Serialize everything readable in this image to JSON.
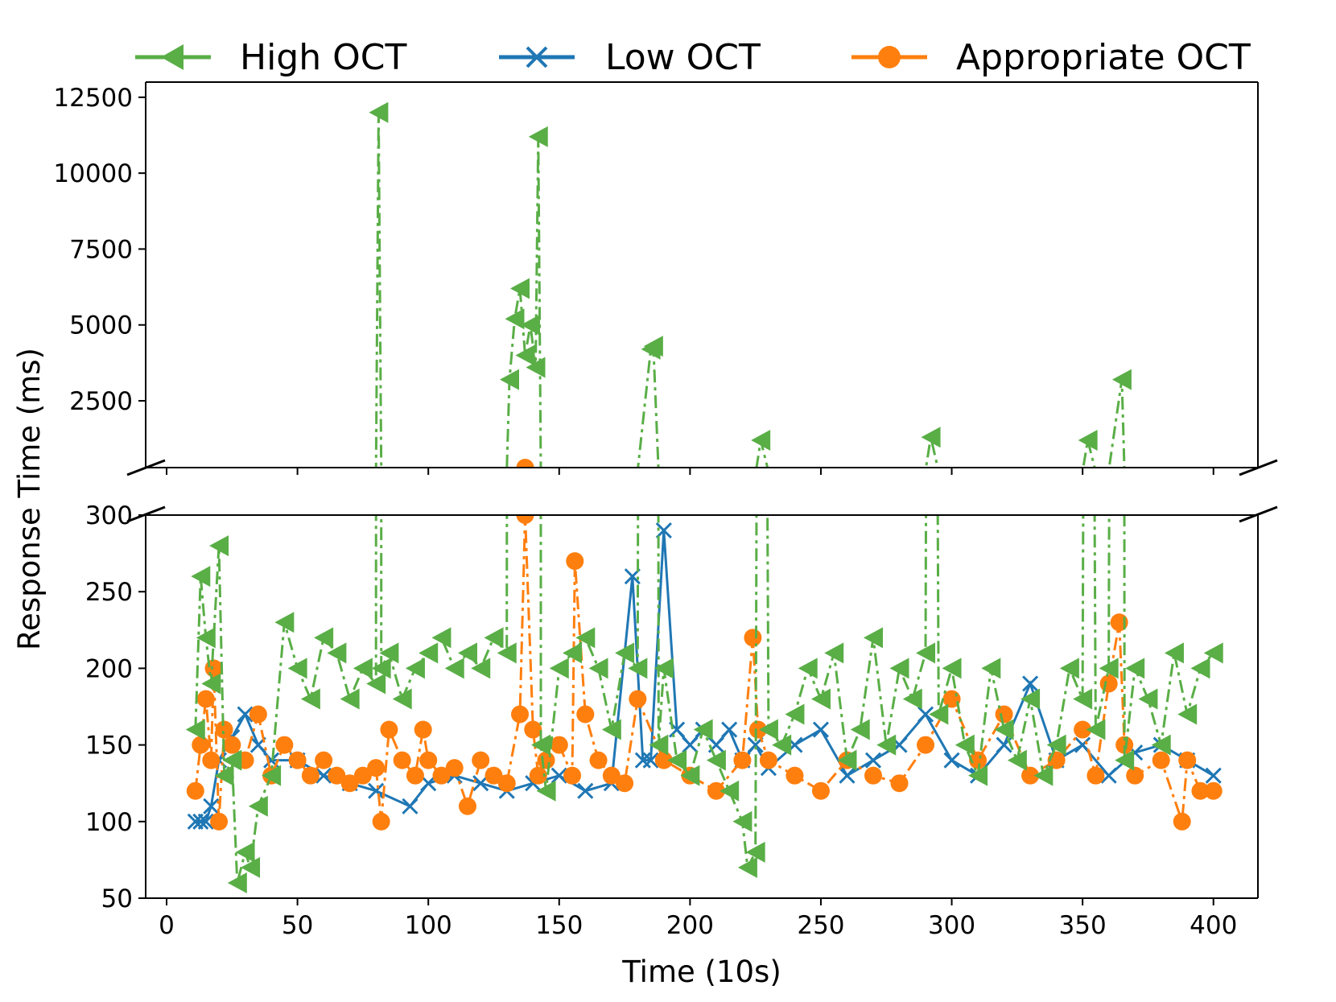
{
  "chart_data": {
    "type": "line",
    "xlabel": "Time (10s)",
    "ylabel": "Response Time (ms)",
    "xlim": [
      -8,
      417
    ],
    "xticks": [
      "0",
      "50",
      "100",
      "150",
      "200",
      "250",
      "300",
      "350",
      "400"
    ],
    "xtick_values": [
      0,
      50,
      100,
      150,
      200,
      250,
      300,
      350,
      400
    ],
    "broken_axis": true,
    "legend_position": "top",
    "upper_panel": {
      "ylim": [
        300,
        13000
      ],
      "yticks": [
        "2500",
        "5000",
        "7500",
        "10000",
        "12500"
      ],
      "ytick_values": [
        2500,
        5000,
        7500,
        10000,
        12500
      ]
    },
    "lower_panel": {
      "ylim": [
        50,
        300
      ],
      "yticks": [
        "50",
        "100",
        "150",
        "200",
        "250",
        "300"
      ],
      "ytick_values": [
        50,
        100,
        150,
        200,
        250,
        300
      ]
    },
    "series": [
      {
        "name": "Low OCT",
        "color": "#1f77b4",
        "marker": "x",
        "linestyle": "solid",
        "x": [
          11,
          13,
          15,
          17,
          20,
          25,
          30,
          35,
          40,
          50,
          60,
          70,
          80,
          93,
          100,
          110,
          120,
          130,
          140,
          150,
          160,
          170,
          178,
          182,
          185,
          190,
          195,
          200,
          205,
          210,
          215,
          220,
          225,
          230,
          240,
          250,
          260,
          270,
          280,
          290,
          300,
          310,
          320,
          330,
          340,
          350,
          360,
          370,
          380,
          390,
          400
        ],
        "y": [
          100,
          100,
          100,
          110,
          140,
          155,
          170,
          150,
          140,
          140,
          130,
          125,
          120,
          110,
          125,
          130,
          125,
          120,
          125,
          130,
          120,
          125,
          260,
          140,
          140,
          290,
          160,
          150,
          160,
          150,
          160,
          140,
          150,
          135,
          150,
          160,
          130,
          140,
          150,
          170,
          140,
          130,
          150,
          190,
          140,
          150,
          130,
          145,
          150,
          140,
          130
        ]
      },
      {
        "name": "Appropriate OCT",
        "color": "#ff7f0e",
        "marker": "o",
        "linestyle": "dashdot",
        "x": [
          11,
          13,
          15,
          17,
          18,
          20,
          22,
          25,
          30,
          35,
          40,
          45,
          50,
          55,
          60,
          65,
          70,
          75,
          80,
          82,
          85,
          90,
          95,
          98,
          100,
          105,
          110,
          115,
          120,
          125,
          130,
          135,
          137,
          140,
          142,
          145,
          150,
          155,
          156,
          160,
          165,
          170,
          175,
          180,
          190,
          200,
          210,
          220,
          224,
          226,
          230,
          240,
          250,
          260,
          270,
          280,
          290,
          300,
          310,
          320,
          330,
          340,
          350,
          355,
          360,
          364,
          366,
          370,
          380,
          388,
          390,
          395,
          400
        ],
        "y": [
          120,
          150,
          180,
          140,
          200,
          100,
          160,
          150,
          140,
          170,
          130,
          150,
          140,
          130,
          140,
          130,
          125,
          130,
          135,
          100,
          160,
          140,
          130,
          160,
          140,
          130,
          135,
          110,
          140,
          130,
          125,
          170,
          300,
          160,
          130,
          140,
          150,
          130,
          270,
          170,
          140,
          130,
          125,
          180,
          140,
          130,
          120,
          140,
          220,
          160,
          140,
          130,
          120,
          140,
          130,
          125,
          150,
          180,
          140,
          170,
          130,
          140,
          160,
          130,
          190,
          230,
          150,
          130,
          140,
          100,
          140,
          120,
          120
        ]
      },
      {
        "name": "High OCT",
        "color": "#59ae46",
        "marker": "<",
        "linestyle": "dashdot",
        "x": [
          11,
          13,
          15,
          17,
          20,
          22,
          25,
          27,
          30,
          32,
          35,
          40,
          45,
          50,
          55,
          60,
          65,
          70,
          75,
          80,
          81,
          82,
          85,
          90,
          95,
          100,
          105,
          110,
          115,
          120,
          125,
          130,
          131,
          133,
          135,
          137,
          139,
          141,
          142,
          143,
          145,
          150,
          155,
          160,
          165,
          170,
          175,
          180,
          185,
          186,
          188,
          190,
          195,
          200,
          205,
          210,
          215,
          220,
          222,
          225,
          227,
          230,
          235,
          240,
          245,
          250,
          255,
          260,
          265,
          270,
          275,
          280,
          285,
          290,
          292,
          295,
          300,
          305,
          310,
          315,
          320,
          325,
          330,
          335,
          340,
          345,
          350,
          352,
          355,
          360,
          365,
          366,
          370,
          375,
          380,
          385,
          390,
          395,
          400
        ],
        "y": [
          160,
          260,
          220,
          190,
          280,
          130,
          140,
          60,
          80,
          70,
          110,
          130,
          230,
          200,
          180,
          220,
          210,
          180,
          200,
          190,
          12000,
          200,
          210,
          180,
          200,
          210,
          220,
          200,
          210,
          200,
          220,
          210,
          3200,
          5200,
          6200,
          4000,
          5000,
          3600,
          11200,
          150,
          120,
          200,
          210,
          220,
          200,
          160,
          210,
          200,
          4200,
          4300,
          150,
          200,
          140,
          130,
          160,
          140,
          120,
          100,
          70,
          80,
          1200,
          160,
          150,
          170,
          200,
          180,
          210,
          140,
          160,
          220,
          150,
          200,
          180,
          210,
          1300,
          170,
          200,
          150,
          130,
          200,
          160,
          140,
          180,
          130,
          150,
          200,
          180,
          1200,
          160,
          200,
          3200,
          140,
          200,
          180,
          150,
          210,
          170,
          200,
          210
        ]
      }
    ]
  }
}
